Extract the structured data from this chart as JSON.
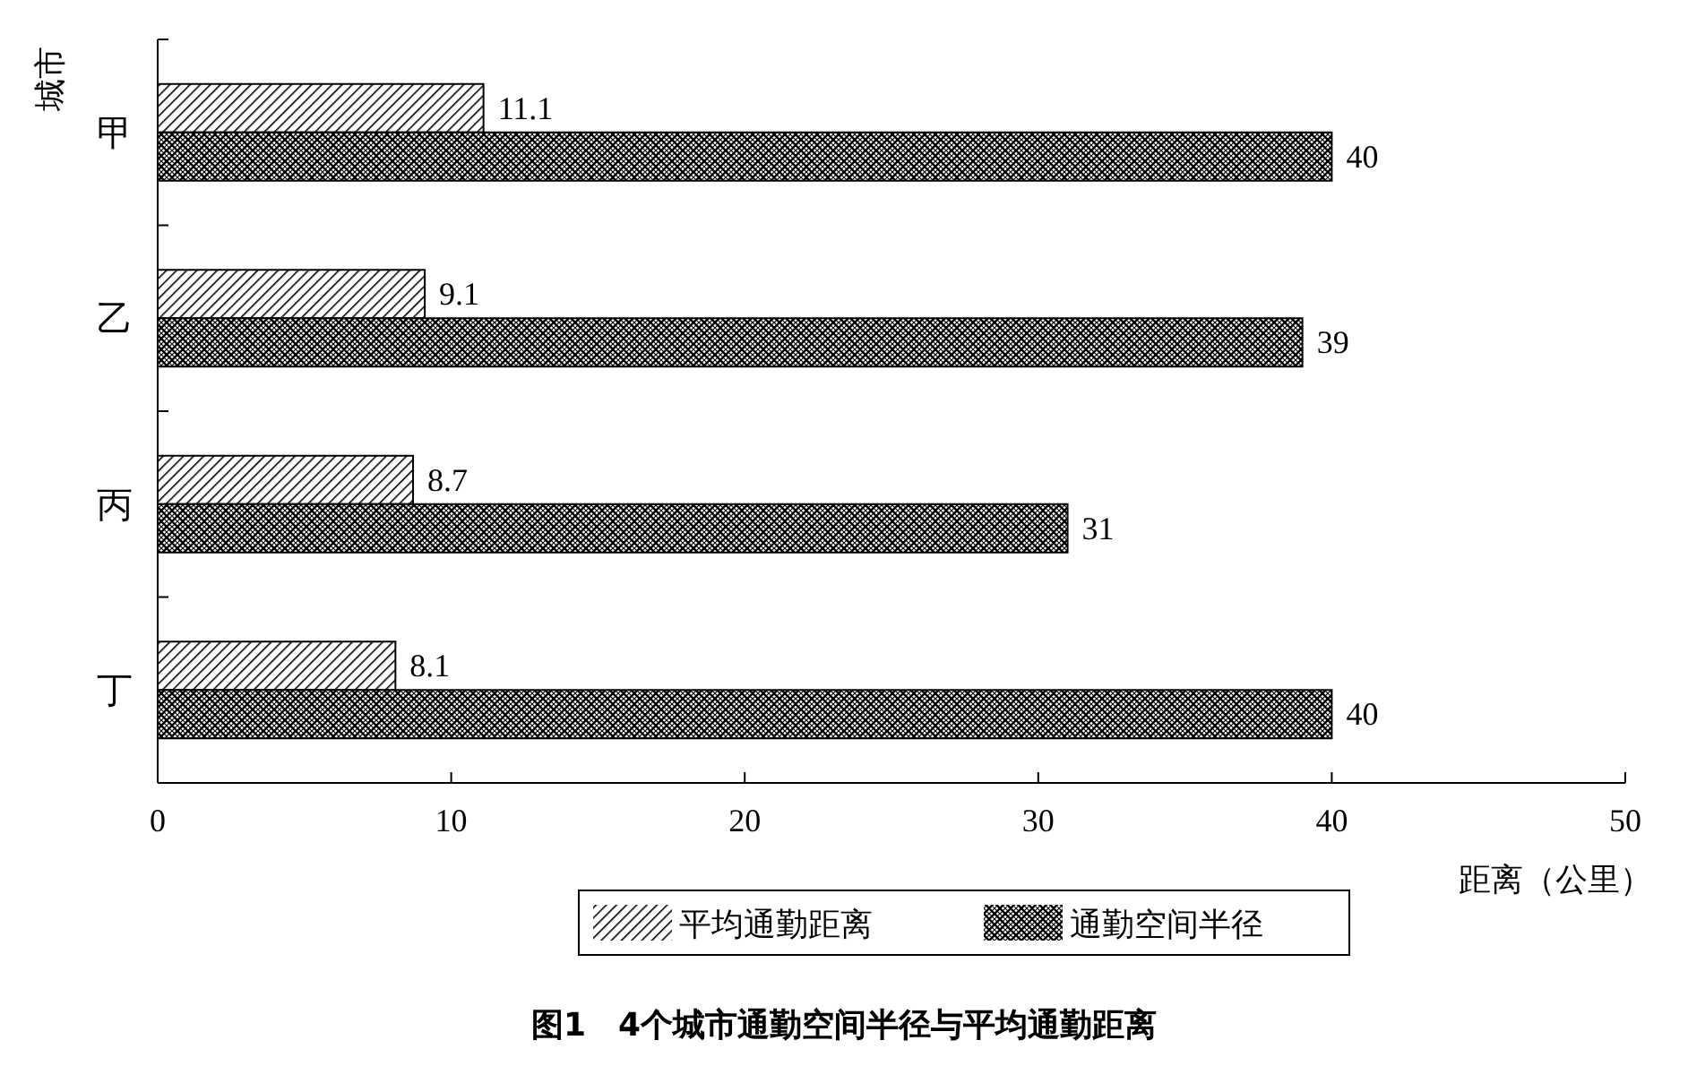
{
  "chart_data": {
    "type": "bar",
    "orientation": "horizontal",
    "title": "图1　4个城市通勤空间半径与平均通勤距离",
    "xlabel": "距离（公里）",
    "ylabel": "城市",
    "categories": [
      "甲",
      "乙",
      "丙",
      "丁"
    ],
    "series": [
      {
        "name": "平均通勤距离",
        "color": "#000000",
        "values": [
          11.1,
          9.1,
          8.7,
          8.1
        ]
      },
      {
        "name": "通勤空间半径",
        "color": "#000000",
        "values": [
          40,
          39,
          31,
          40
        ]
      }
    ],
    "xlim": [
      0,
      50
    ],
    "xticks": [
      0,
      10,
      20,
      30,
      40,
      50
    ],
    "data_labels": true,
    "legend": "bottom",
    "grid": false
  }
}
